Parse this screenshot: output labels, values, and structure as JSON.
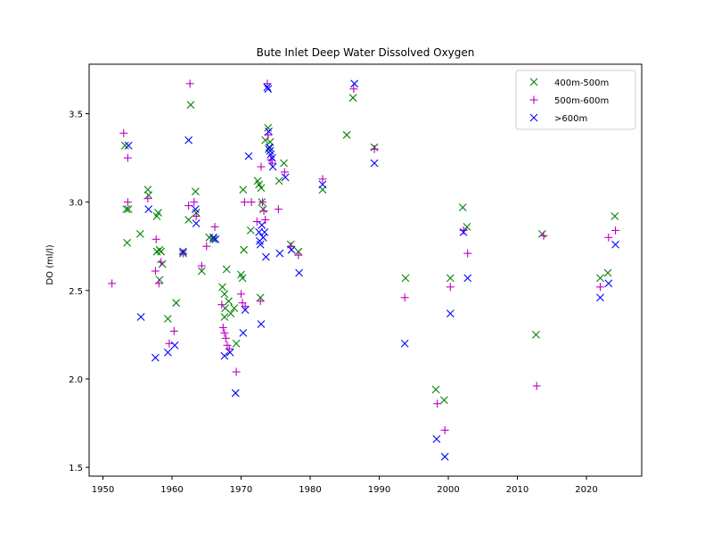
{
  "chart_data": {
    "type": "scatter",
    "title": "Bute Inlet Deep Water Dissolved Oxygen",
    "xlabel": "",
    "ylabel": "DO (ml/l)",
    "xlim": [
      1948,
      2028
    ],
    "ylim": [
      1.45,
      3.78
    ],
    "xticks": [
      1950,
      1960,
      1970,
      1980,
      1990,
      2000,
      2010,
      2020
    ],
    "yticks": [
      1.5,
      2.0,
      2.5,
      3.0,
      3.5
    ],
    "ytick_labels": [
      "1.5",
      "2.0",
      "2.5",
      "3.0",
      "3.5"
    ],
    "grid": false,
    "legend_position": "top-right",
    "series": [
      {
        "name": "400m-500m",
        "marker": "x",
        "color": "#008000",
        "points": [
          [
            1953.2,
            3.32
          ],
          [
            1953.4,
            2.96
          ],
          [
            1953.7,
            2.96
          ],
          [
            1953.5,
            2.77
          ],
          [
            1955.4,
            2.82
          ],
          [
            1956.5,
            3.07
          ],
          [
            1956.6,
            3.04
          ],
          [
            1957.8,
            2.92
          ],
          [
            1958.0,
            2.94
          ],
          [
            1957.8,
            2.72
          ],
          [
            1958.2,
            2.73
          ],
          [
            1958.4,
            2.72
          ],
          [
            1958.2,
            2.56
          ],
          [
            1958.6,
            2.65
          ],
          [
            1959.4,
            2.34
          ],
          [
            1960.6,
            2.43
          ],
          [
            1961.6,
            2.71
          ],
          [
            1962.7,
            3.55
          ],
          [
            1962.4,
            2.9
          ],
          [
            1963.4,
            3.06
          ],
          [
            1963.5,
            2.94
          ],
          [
            1964.3,
            2.61
          ],
          [
            1965.4,
            2.8
          ],
          [
            1966.0,
            2.79
          ],
          [
            1967.3,
            2.52
          ],
          [
            1967.6,
            2.48
          ],
          [
            1967.7,
            2.4
          ],
          [
            1967.6,
            2.35
          ],
          [
            1967.9,
            2.62
          ],
          [
            1968.2,
            2.44
          ],
          [
            1968.5,
            2.37
          ],
          [
            1969.0,
            2.4
          ],
          [
            1969.3,
            2.2
          ],
          [
            1970.0,
            2.59
          ],
          [
            1970.2,
            2.57
          ],
          [
            1970.3,
            3.07
          ],
          [
            1970.4,
            2.73
          ],
          [
            1971.4,
            2.84
          ],
          [
            1972.4,
            3.12
          ],
          [
            1972.6,
            3.1
          ],
          [
            1972.9,
            3.08
          ],
          [
            1972.8,
            2.46
          ],
          [
            1973.0,
            3.0
          ],
          [
            1973.2,
            2.96
          ],
          [
            1973.5,
            3.35
          ],
          [
            1973.9,
            3.42
          ],
          [
            1974.0,
            3.3
          ],
          [
            1974.2,
            3.34
          ],
          [
            1975.5,
            3.12
          ],
          [
            1976.2,
            3.22
          ],
          [
            1977.2,
            2.76
          ],
          [
            1978.3,
            2.72
          ],
          [
            1981.8,
            3.07
          ],
          [
            1985.3,
            3.38
          ],
          [
            1986.2,
            3.59
          ],
          [
            1989.3,
            3.31
          ],
          [
            1993.8,
            2.57
          ],
          [
            1998.2,
            1.94
          ],
          [
            1999.4,
            1.88
          ],
          [
            2000.3,
            2.57
          ],
          [
            2002.1,
            2.97
          ],
          [
            2002.7,
            2.86
          ],
          [
            2012.7,
            2.25
          ],
          [
            2013.6,
            2.82
          ],
          [
            2022.0,
            2.57
          ],
          [
            2023.1,
            2.6
          ],
          [
            2024.1,
            2.92
          ]
        ]
      },
      {
        "name": "500m-600m",
        "marker": "+",
        "color": "#bf00bf",
        "points": [
          [
            1951.3,
            2.54
          ],
          [
            1953.0,
            3.39
          ],
          [
            1953.6,
            3.25
          ],
          [
            1953.6,
            3.0
          ],
          [
            1956.5,
            3.02
          ],
          [
            1957.7,
            2.79
          ],
          [
            1957.6,
            2.61
          ],
          [
            1958.1,
            2.54
          ],
          [
            1958.4,
            2.66
          ],
          [
            1959.6,
            2.2
          ],
          [
            1960.3,
            2.27
          ],
          [
            1961.6,
            2.71
          ],
          [
            1962.6,
            3.67
          ],
          [
            1962.4,
            2.98
          ],
          [
            1963.2,
            3.0
          ],
          [
            1963.5,
            2.92
          ],
          [
            1964.3,
            2.64
          ],
          [
            1965.0,
            2.75
          ],
          [
            1966.2,
            2.86
          ],
          [
            1967.2,
            2.42
          ],
          [
            1967.4,
            2.29
          ],
          [
            1967.6,
            2.26
          ],
          [
            1967.8,
            2.23
          ],
          [
            1968.0,
            2.19
          ],
          [
            1968.3,
            2.17
          ],
          [
            1969.3,
            2.04
          ],
          [
            1970.0,
            2.48
          ],
          [
            1970.2,
            2.43
          ],
          [
            1970.5,
            3.0
          ],
          [
            1970.6,
            2.41
          ],
          [
            1971.5,
            3.0
          ],
          [
            1972.3,
            2.89
          ],
          [
            1972.8,
            2.44
          ],
          [
            1972.9,
            3.2
          ],
          [
            1973.1,
            3.0
          ],
          [
            1973.3,
            2.95
          ],
          [
            1973.5,
            2.9
          ],
          [
            1973.9,
            3.38
          ],
          [
            1973.8,
            3.67
          ],
          [
            1974.3,
            3.24
          ],
          [
            1974.5,
            3.22
          ],
          [
            1975.4,
            2.96
          ],
          [
            1976.3,
            3.17
          ],
          [
            1977.2,
            2.75
          ],
          [
            1978.3,
            2.7
          ],
          [
            1981.8,
            3.13
          ],
          [
            1986.3,
            3.64
          ],
          [
            1989.3,
            3.3
          ],
          [
            1993.7,
            2.46
          ],
          [
            1998.4,
            1.86
          ],
          [
            1999.5,
            1.71
          ],
          [
            2000.3,
            2.52
          ],
          [
            2002.2,
            2.84
          ],
          [
            2002.8,
            2.71
          ],
          [
            2012.8,
            1.96
          ],
          [
            2013.8,
            2.81
          ],
          [
            2022.0,
            2.52
          ],
          [
            2023.2,
            2.8
          ],
          [
            2024.2,
            2.84
          ]
        ]
      },
      {
        "name": ">600m",
        "marker": "x",
        "color": "#0000ff",
        "points": [
          [
            1953.7,
            3.32
          ],
          [
            1955.5,
            2.35
          ],
          [
            1956.6,
            2.96
          ],
          [
            1957.6,
            2.12
          ],
          [
            1959.4,
            2.15
          ],
          [
            1960.4,
            2.19
          ],
          [
            1961.6,
            2.72
          ],
          [
            1962.4,
            3.35
          ],
          [
            1963.4,
            2.96
          ],
          [
            1963.5,
            2.88
          ],
          [
            1966.0,
            2.8
          ],
          [
            1966.3,
            2.79
          ],
          [
            1967.6,
            2.13
          ],
          [
            1968.4,
            2.15
          ],
          [
            1969.2,
            1.92
          ],
          [
            1970.3,
            2.26
          ],
          [
            1970.6,
            2.39
          ],
          [
            1971.1,
            3.26
          ],
          [
            1972.6,
            2.83
          ],
          [
            1972.7,
            2.78
          ],
          [
            1972.8,
            2.76
          ],
          [
            1972.9,
            2.31
          ],
          [
            1973.0,
            2.87
          ],
          [
            1973.2,
            2.8
          ],
          [
            1973.4,
            2.83
          ],
          [
            1973.6,
            2.69
          ],
          [
            1973.8,
            3.65
          ],
          [
            1973.9,
            3.64
          ],
          [
            1974.0,
            3.4
          ],
          [
            1974.1,
            3.31
          ],
          [
            1974.2,
            3.29
          ],
          [
            1974.3,
            3.27
          ],
          [
            1974.5,
            3.25
          ],
          [
            1974.6,
            3.2
          ],
          [
            1975.6,
            2.71
          ],
          [
            1976.4,
            3.14
          ],
          [
            1977.3,
            2.73
          ],
          [
            1978.4,
            2.6
          ],
          [
            1981.8,
            3.1
          ],
          [
            1986.4,
            3.67
          ],
          [
            1989.3,
            3.22
          ],
          [
            1993.7,
            2.2
          ],
          [
            1998.3,
            1.66
          ],
          [
            1999.5,
            1.56
          ],
          [
            2000.3,
            2.37
          ],
          [
            2002.2,
            2.83
          ],
          [
            2002.8,
            2.57
          ],
          [
            2022.0,
            2.46
          ],
          [
            2023.2,
            2.54
          ],
          [
            2024.2,
            2.76
          ]
        ]
      }
    ]
  }
}
